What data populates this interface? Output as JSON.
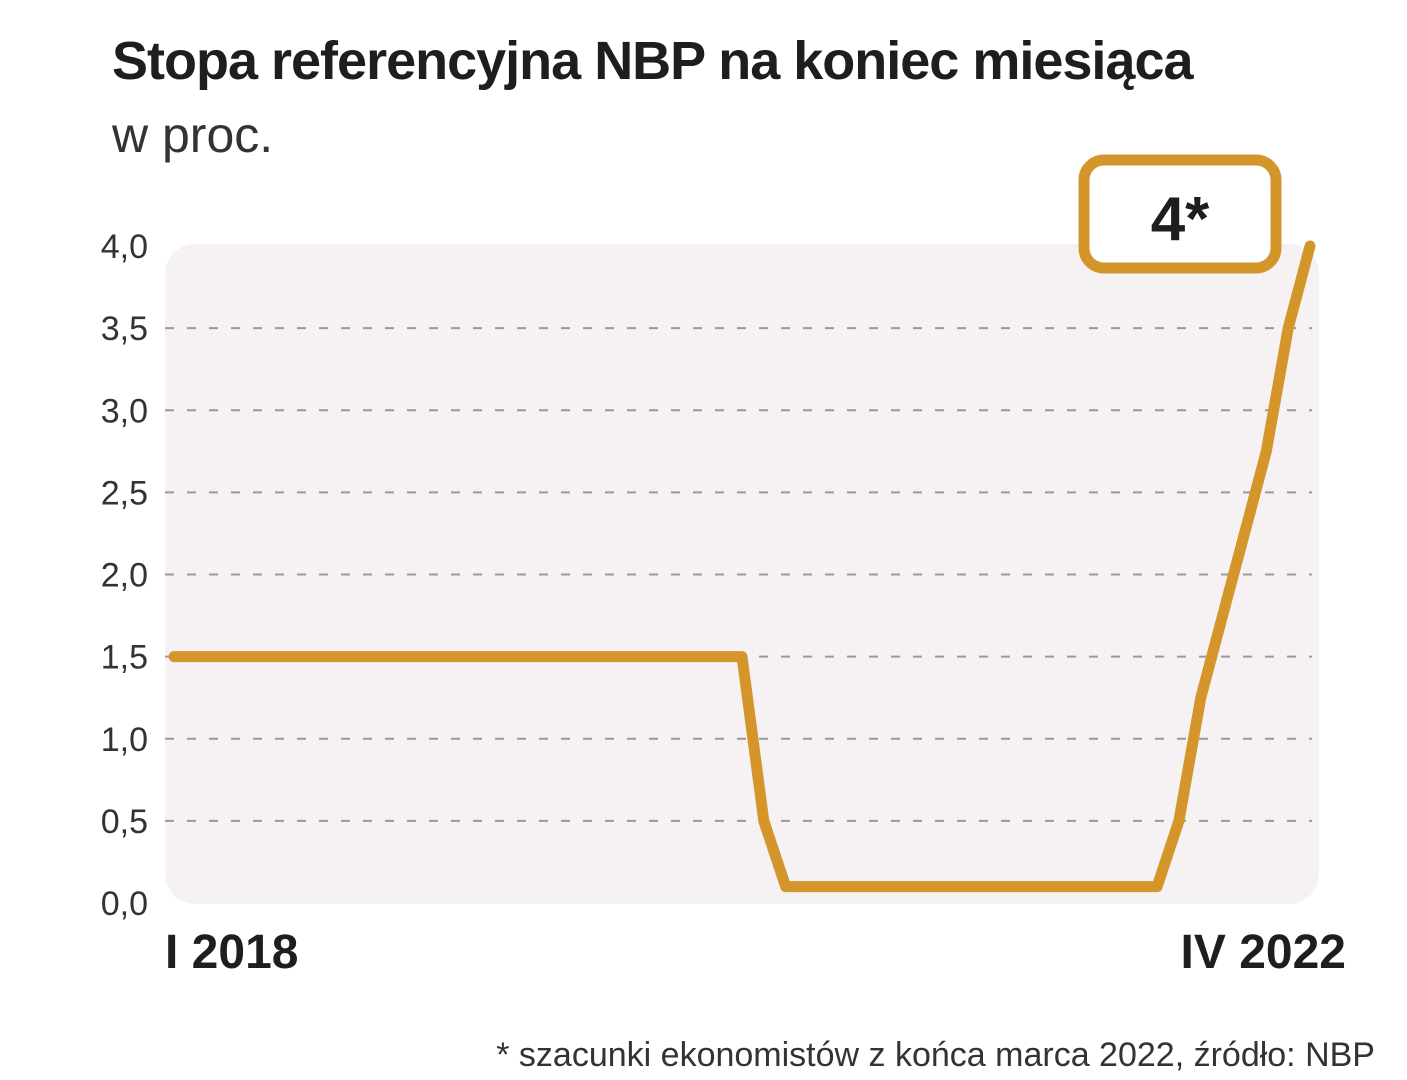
{
  "chart_data": {
    "type": "line",
    "title": "Stopa referencyjna NBP na koniec miesiąca",
    "subtitle": "w proc.",
    "x_start_label": "I 2018",
    "x_end_label": "IV 2022",
    "ylim": [
      0,
      4.0
    ],
    "yticks": [
      "0,0",
      "0,5",
      "1,0",
      "1,5",
      "2,0",
      "2,5",
      "3,0",
      "3,5",
      "4,0"
    ],
    "ytick_values": [
      0,
      0.5,
      1.0,
      1.5,
      2.0,
      2.5,
      3.0,
      3.5,
      4.0
    ],
    "grid": true,
    "series": [
      {
        "name": "Stopa referencyjna NBP",
        "color": "#d4952b",
        "x": [
          0,
          26,
          27,
          28,
          29,
          45,
          46,
          47,
          48,
          49,
          50,
          51,
          52
        ],
        "values": [
          1.5,
          1.5,
          0.5,
          0.1,
          0.1,
          0.1,
          0.5,
          1.25,
          1.75,
          2.25,
          2.75,
          3.5,
          4.0
        ]
      }
    ],
    "x_range": [
      0,
      52
    ],
    "annotation": {
      "label": "4*",
      "value": 4.0
    },
    "footnote": "* szacunki ekonomistów z końca marca 2022, źródło: NBP"
  }
}
